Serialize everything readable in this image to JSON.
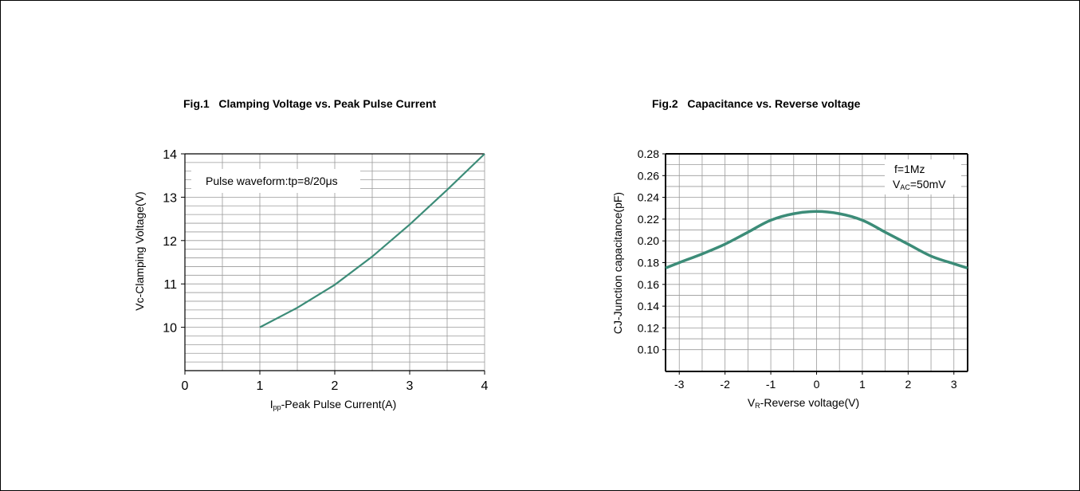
{
  "charts_meta": {
    "line_color": "#3c8c78"
  },
  "chart_data": [
    {
      "type": "line",
      "title": "Fig.1   Clamping Voltage vs. Peak Pulse Current",
      "xlabel_main": "I",
      "xlabel_sub": "pp",
      "xlabel_rest": "-Peak Pulse Current(A)",
      "ylabel": "Vc-Clamping Voltage(V)",
      "xlim": [
        0,
        4
      ],
      "ylim": [
        9,
        14
      ],
      "xticks": [
        0,
        1,
        2,
        3,
        4
      ],
      "yticks": [
        10,
        11,
        12,
        13,
        14
      ],
      "grid": true,
      "annotation": "Pulse waveform:tp=8/20μs",
      "series": [
        {
          "x": [
            1.0,
            1.5,
            2.0,
            2.5,
            3.0,
            3.5,
            4.0
          ],
          "y": [
            10.0,
            10.45,
            10.98,
            11.63,
            12.37,
            13.17,
            14.0
          ]
        }
      ]
    },
    {
      "type": "line",
      "title": "Fig.2   Capacitance vs. Reverse voltage",
      "xlabel_main": "V",
      "xlabel_sub": "R",
      "xlabel_rest": "-Reverse voltage(V)",
      "ylabel": "CJ-Junction capacitance(pF)",
      "xlim": [
        -3.3,
        3.3
      ],
      "ylim": [
        0.08,
        0.28
      ],
      "xticks": [
        -3,
        -2,
        -1,
        0,
        1,
        2,
        3
      ],
      "yticks": [
        "0.10",
        "0.12",
        "0.14",
        "0.16",
        "0.18",
        "0.20",
        "0.22",
        "0.24",
        "0.26",
        "0.28"
      ],
      "grid": true,
      "annotation_line1": "f=1Mz",
      "annotation_line2_main": "V",
      "annotation_line2_sub": "AC",
      "annotation_line2_rest": "=50mV",
      "series": [
        {
          "x": [
            -3.3,
            -3.0,
            -2.5,
            -2.0,
            -1.5,
            -1.0,
            -0.5,
            0.0,
            0.5,
            1.0,
            1.5,
            2.0,
            2.5,
            3.0,
            3.3
          ],
          "y": [
            0.175,
            0.18,
            0.188,
            0.197,
            0.208,
            0.219,
            0.225,
            0.227,
            0.225,
            0.219,
            0.208,
            0.197,
            0.186,
            0.179,
            0.175
          ]
        }
      ]
    }
  ]
}
